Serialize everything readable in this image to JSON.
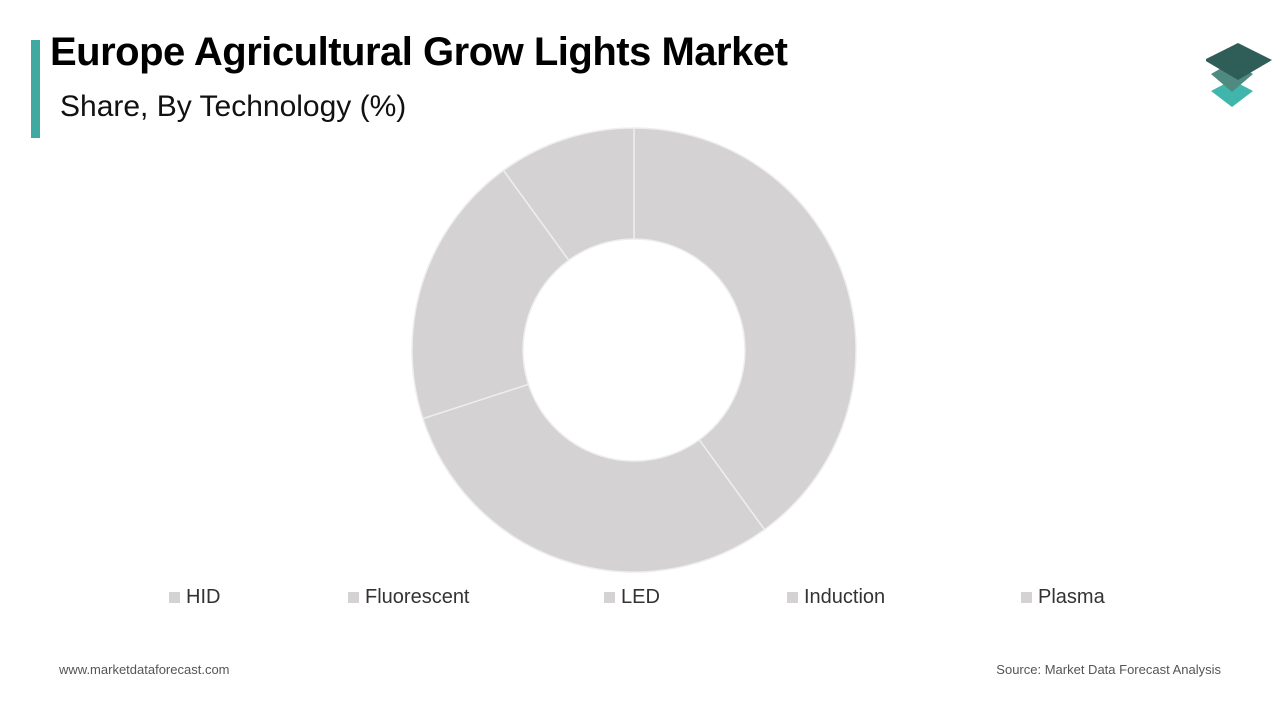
{
  "header": {
    "title": "Europe Agricultural Grow Lights Market",
    "subtitle": "Share, By Technology (%)"
  },
  "logo": {
    "icon": "stacked-layers-icon",
    "colors": [
      "#2f5d57",
      "#4f8a80",
      "#3fb5ac"
    ]
  },
  "colors": {
    "accent": "#3fa9a2",
    "slice_fill": "#d4d2d3",
    "slice_stroke": "#eeeeee"
  },
  "chart_data": {
    "type": "pie",
    "style": "donut",
    "categories": [
      "HID",
      "Fluorescent",
      "LED",
      "Induction",
      "Plasma"
    ],
    "values": [
      40,
      30,
      20,
      10,
      0
    ],
    "legend_position": "bottom"
  },
  "footer": {
    "website": "www.marketdataforecast.com",
    "source": "Source: Market Data Forecast Analysis"
  }
}
